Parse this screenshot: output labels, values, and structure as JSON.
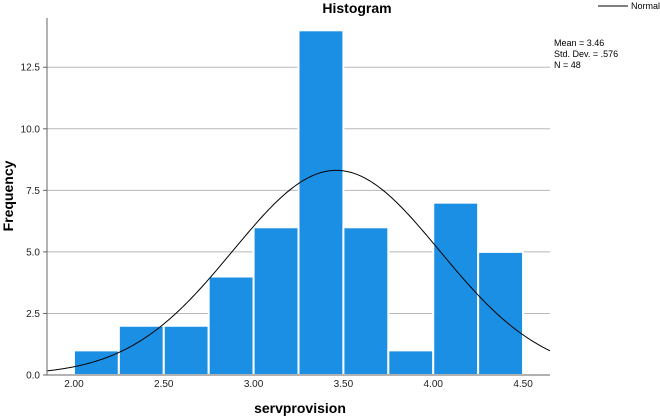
{
  "chart_data": {
    "type": "bar",
    "title": "Histogram",
    "xlabel": "servprovision",
    "ylabel": "Frequency",
    "bins": [
      {
        "start": 2.0,
        "end": 2.25,
        "count": 1
      },
      {
        "start": 2.25,
        "end": 2.5,
        "count": 2
      },
      {
        "start": 2.5,
        "end": 2.75,
        "count": 2
      },
      {
        "start": 2.75,
        "end": 3.0,
        "count": 4
      },
      {
        "start": 3.0,
        "end": 3.25,
        "count": 6
      },
      {
        "start": 3.25,
        "end": 3.5,
        "count": 14
      },
      {
        "start": 3.5,
        "end": 3.75,
        "count": 6
      },
      {
        "start": 3.75,
        "end": 4.0,
        "count": 1
      },
      {
        "start": 4.0,
        "end": 4.25,
        "count": 7
      },
      {
        "start": 4.25,
        "end": 4.5,
        "count": 5
      }
    ],
    "xlim": [
      1.85,
      4.65
    ],
    "ylim": [
      0,
      14.5
    ],
    "x_ticks": [
      "2.00",
      "2.50",
      "3.00",
      "3.50",
      "4.00",
      "4.50"
    ],
    "y_ticks": [
      "0.0",
      "2.5",
      "5.0",
      "7.5",
      "10.0",
      "12.5"
    ],
    "grid": "horizontal",
    "bar_color": "#1a8fe3",
    "normal_curve": {
      "mean": 3.46,
      "sd": 0.576,
      "n": 48,
      "bin_width": 0.25,
      "color": "#000000"
    },
    "legend": {
      "entries": [
        "Normal"
      ],
      "position": "top-right"
    },
    "stats": [
      "Mean = 3.46",
      "Std. Dev. = .576",
      "N = 48"
    ]
  }
}
